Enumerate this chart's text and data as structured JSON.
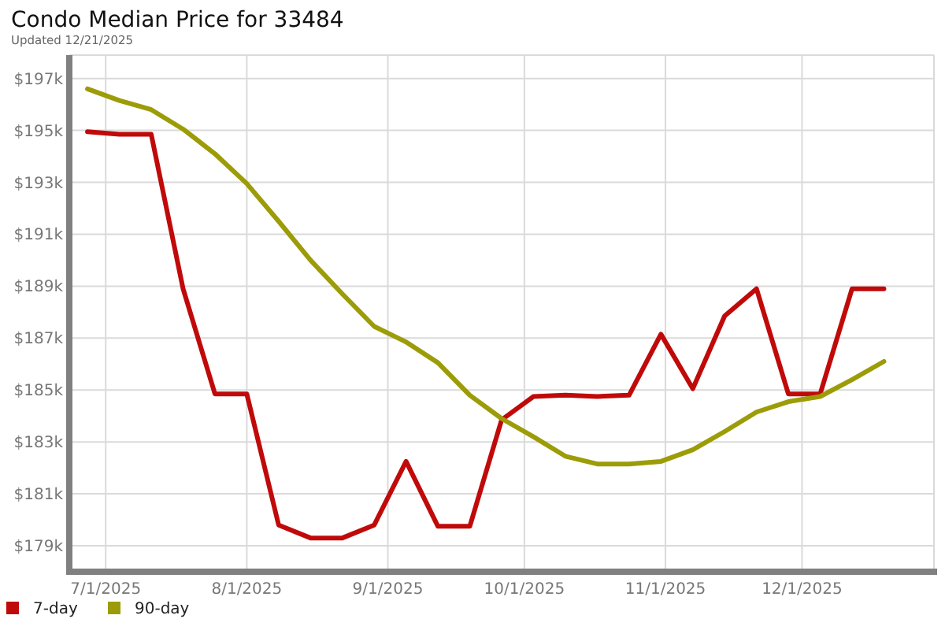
{
  "chart_data": {
    "type": "line",
    "title": "Condo Median Price for 33484",
    "subtitle": "Updated 12/21/2025",
    "x": [
      "2025-06-27",
      "2025-07-04",
      "2025-07-11",
      "2025-07-18",
      "2025-07-25",
      "2025-08-01",
      "2025-08-08",
      "2025-08-15",
      "2025-08-22",
      "2025-08-29",
      "2025-09-05",
      "2025-09-12",
      "2025-09-19",
      "2025-09-26",
      "2025-10-03",
      "2025-10-10",
      "2025-10-17",
      "2025-10-24",
      "2025-10-31",
      "2025-11-07",
      "2025-11-14",
      "2025-11-21",
      "2025-11-28",
      "2025-12-05",
      "2025-12-12",
      "2025-12-19"
    ],
    "series": [
      {
        "name": "7-day",
        "color": "#c00a0a",
        "values": [
          194950,
          194850,
          194850,
          188900,
          184850,
          184850,
          179800,
          179300,
          179300,
          179800,
          182250,
          179750,
          179750,
          183850,
          184750,
          184800,
          184750,
          184800,
          187150,
          185050,
          187850,
          188900,
          184850,
          184850,
          188900,
          188900
        ]
      },
      {
        "name": "90-day",
        "color": "#9c9c08",
        "values": [
          196600,
          196150,
          195800,
          195050,
          194100,
          192950,
          191500,
          190000,
          188700,
          187450,
          186850,
          186050,
          184800,
          183900,
          183200,
          182450,
          182150,
          182150,
          182250,
          182700,
          183400,
          184150,
          184550,
          184750,
          185400,
          186100
        ]
      }
    ],
    "xlim": [
      "2025-06-23",
      "2025-12-30"
    ],
    "xticks": [
      {
        "value": "2025-07-01",
        "label": "7/1/2025"
      },
      {
        "value": "2025-08-01",
        "label": "8/1/2025"
      },
      {
        "value": "2025-09-01",
        "label": "9/1/2025"
      },
      {
        "value": "2025-10-01",
        "label": "10/1/2025"
      },
      {
        "value": "2025-11-01",
        "label": "11/1/2025"
      },
      {
        "value": "2025-12-01",
        "label": "12/1/2025"
      }
    ],
    "ylim": [
      178000,
      197900
    ],
    "yticks": [
      {
        "value": 179000,
        "label": "$179k"
      },
      {
        "value": 181000,
        "label": "$181k"
      },
      {
        "value": 183000,
        "label": "$183k"
      },
      {
        "value": 185000,
        "label": "$185k"
      },
      {
        "value": 187000,
        "label": "$187k"
      },
      {
        "value": 189000,
        "label": "$189k"
      },
      {
        "value": 191000,
        "label": "$191k"
      },
      {
        "value": 193000,
        "label": "$193k"
      },
      {
        "value": 195000,
        "label": "$195k"
      },
      {
        "value": 197000,
        "label": "$197k"
      }
    ],
    "grid": true,
    "legend": "bottom left",
    "marker": "none",
    "line_style": "solid"
  }
}
